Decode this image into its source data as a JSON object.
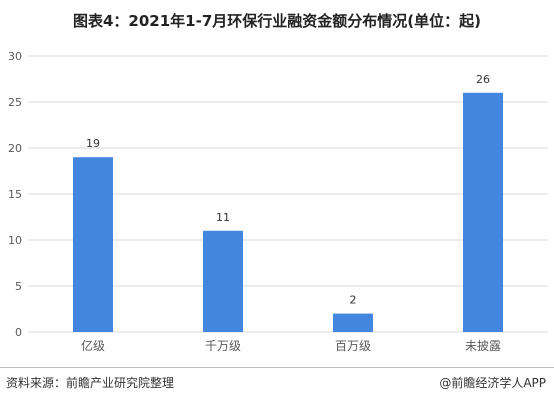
{
  "title": "图表4：2021年1-7月环保行业融资金额分布情况(单位：起)",
  "source": "资料来源：前瞻产业研究院整理",
  "credit": "@前瞻经济学人APP",
  "colors": {
    "bar": "#4286e0",
    "grid": "#d9d9d9",
    "axis_text": "#595959"
  },
  "chart_data": {
    "type": "bar",
    "categories": [
      "亿级",
      "千万级",
      "百万级",
      "未披露"
    ],
    "values": [
      19,
      11,
      2,
      26
    ],
    "ylim": [
      0,
      30
    ],
    "yticks": [
      0,
      5,
      10,
      15,
      20,
      25,
      30
    ],
    "grid": true,
    "data_labels": true
  }
}
